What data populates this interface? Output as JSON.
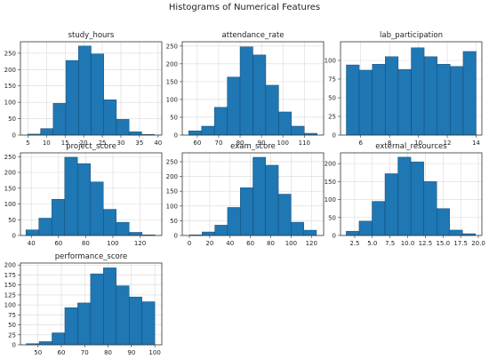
{
  "figure": {
    "title": "Histograms of Numerical Features"
  },
  "chart_data": [
    {
      "type": "bar",
      "title": "study_hours",
      "xlabel": "",
      "ylabel": "",
      "xlim": [
        3,
        41
      ],
      "ylim": [
        0,
        285
      ],
      "grid": true,
      "xticks": [
        5,
        10,
        15,
        20,
        25,
        30,
        35,
        40
      ],
      "yticks": [
        0,
        50,
        100,
        150,
        200,
        250
      ],
      "bin_edges": [
        5,
        8.4,
        11.8,
        15.2,
        18.6,
        22,
        25.4,
        28.8,
        32.2,
        35.6,
        39
      ],
      "values": [
        3,
        20,
        97,
        228,
        272,
        248,
        108,
        48,
        10,
        2
      ]
    },
    {
      "type": "bar",
      "title": "attendance_rate",
      "xlabel": "",
      "ylabel": "",
      "xlim": [
        53,
        119
      ],
      "ylim": [
        0,
        262
      ],
      "grid": true,
      "xticks": [
        60,
        70,
        80,
        90,
        100,
        110
      ],
      "yticks": [
        0,
        50,
        100,
        150,
        200,
        250
      ],
      "bin_edges": [
        56,
        62,
        68,
        74,
        80,
        86,
        92,
        98,
        104,
        110,
        116
      ],
      "values": [
        12,
        25,
        78,
        163,
        248,
        225,
        140,
        65,
        25,
        5
      ]
    },
    {
      "type": "bar",
      "title": "lab_participation",
      "xlabel": "",
      "ylabel": "",
      "xlim": [
        4.6,
        14.4
      ],
      "ylim": [
        0,
        125
      ],
      "grid": true,
      "xticks": [
        6,
        8,
        10,
        12,
        14
      ],
      "yticks": [
        0,
        25,
        50,
        75,
        100
      ],
      "bin_edges": [
        5,
        5.9,
        6.8,
        7.7,
        8.6,
        9.5,
        10.4,
        11.3,
        12.2,
        13.1,
        14
      ],
      "values": [
        94,
        87,
        95,
        105,
        88,
        117,
        105,
        95,
        92,
        112
      ]
    },
    {
      "type": "bar",
      "title": "project_score",
      "xlabel": "",
      "ylabel": "",
      "xlim": [
        32,
        136
      ],
      "ylim": [
        0,
        262
      ],
      "grid": true,
      "xticks": [
        40,
        60,
        80,
        100,
        120
      ],
      "yticks": [
        0,
        50,
        100,
        150,
        200,
        250
      ],
      "bin_edges": [
        36,
        45.5,
        55,
        64.5,
        74,
        83.5,
        93,
        102.5,
        112,
        121.5,
        131
      ],
      "values": [
        18,
        55,
        115,
        248,
        228,
        170,
        83,
        42,
        10,
        2
      ]
    },
    {
      "type": "bar",
      "title": "exam_score",
      "xlabel": "",
      "ylabel": "",
      "xlim": [
        -7,
        132
      ],
      "ylim": [
        0,
        280
      ],
      "grid": true,
      "xticks": [
        0,
        20,
        40,
        60,
        80,
        100,
        120
      ],
      "yticks": [
        0,
        50,
        100,
        150,
        200,
        250
      ],
      "bin_edges": [
        0,
        12.5,
        25,
        37.5,
        50,
        62.5,
        75,
        87.5,
        100,
        112.5,
        125
      ],
      "values": [
        2,
        12,
        35,
        95,
        162,
        265,
        238,
        140,
        45,
        18
      ]
    },
    {
      "type": "bar",
      "title": "external_resources",
      "xlabel": "",
      "ylabel": "",
      "xlim": [
        0.5,
        20.5
      ],
      "ylim": [
        0,
        230
      ],
      "grid": true,
      "xticks": [
        2.5,
        5.0,
        7.5,
        10.0,
        12.5,
        15.0,
        17.5,
        20.0
      ],
      "xtick_labels": [
        "2.5",
        "5.0",
        "7.5",
        "10.0",
        "12.5",
        "15.0",
        "17.5",
        "20.0"
      ],
      "yticks": [
        0,
        50,
        100,
        150,
        200
      ],
      "bin_edges": [
        1.3,
        3.13,
        4.96,
        6.79,
        8.62,
        10.45,
        12.28,
        14.11,
        15.94,
        17.77,
        19.6
      ],
      "values": [
        12,
        40,
        95,
        172,
        218,
        205,
        150,
        75,
        15,
        5
      ]
    },
    {
      "type": "bar",
      "title": "performance_score",
      "xlabel": "",
      "ylabel": "",
      "xlim": [
        42.5,
        103
      ],
      "ylim": [
        0,
        205
      ],
      "grid": true,
      "xticks": [
        50,
        60,
        70,
        80,
        90,
        100
      ],
      "yticks": [
        0,
        25,
        50,
        75,
        100,
        125,
        150,
        175,
        200
      ],
      "bin_edges": [
        45,
        50.5,
        56,
        61.5,
        67,
        72.5,
        78,
        83.5,
        89,
        94.5,
        100
      ],
      "values": [
        3,
        8,
        30,
        93,
        105,
        178,
        193,
        148,
        120,
        108
      ]
    }
  ]
}
